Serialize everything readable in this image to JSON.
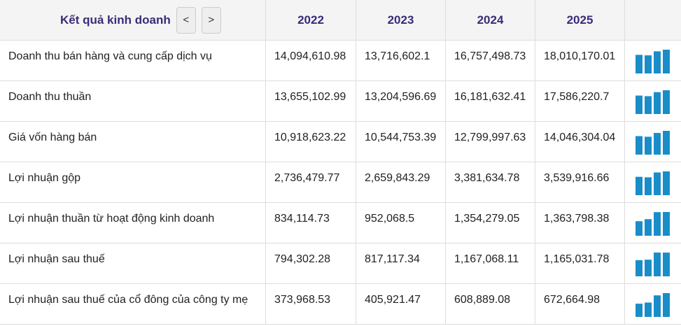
{
  "header": {
    "title": "Kết quả kinh doanh",
    "prev": "<",
    "next": ">",
    "years": [
      "2022",
      "2023",
      "2024",
      "2025"
    ]
  },
  "rows": [
    {
      "label": "Doanh thu bán hàng và cung cấp dịch vụ",
      "values": [
        14094610.98,
        13716602.1,
        16757498.73,
        18010170.01
      ],
      "value_labels": [
        "14,094,610.98",
        "13,716,602.1",
        "16,757,498.73",
        "18,010,170.01"
      ]
    },
    {
      "label": "Doanh thu thuần",
      "values": [
        13655102.99,
        13204596.69,
        16181632.41,
        17586220.7
      ],
      "value_labels": [
        "13,655,102.99",
        "13,204,596.69",
        "16,181,632.41",
        "17,586,220.7"
      ]
    },
    {
      "label": "Giá vốn hàng bán",
      "values": [
        10918623.22,
        10544753.39,
        12799997.63,
        14046304.04
      ],
      "value_labels": [
        "10,918,623.22",
        "10,544,753.39",
        "12,799,997.63",
        "14,046,304.04"
      ]
    },
    {
      "label": "Lợi nhuận gộp",
      "values": [
        2736479.77,
        2659843.29,
        3381634.78,
        3539916.66
      ],
      "value_labels": [
        "2,736,479.77",
        "2,659,843.29",
        "3,381,634.78",
        "3,539,916.66"
      ]
    },
    {
      "label": "Lợi nhuận thuần từ hoạt động kinh doanh",
      "values": [
        834114.73,
        952068.5,
        1354279.05,
        1363798.38
      ],
      "value_labels": [
        "834,114.73",
        "952,068.5",
        "1,354,279.05",
        "1,363,798.38"
      ]
    },
    {
      "label": "Lợi nhuận sau thuế",
      "values": [
        794302.28,
        817117.34,
        1167068.11,
        1165031.78
      ],
      "value_labels": [
        "794,302.28",
        "817,117.34",
        "1,167,068.11",
        "1,165,031.78"
      ]
    },
    {
      "label": "Lợi nhuận sau thuế của cổ đông của công ty mẹ",
      "values": [
        373968.53,
        405921.47,
        608889.08,
        672664.98
      ],
      "value_labels": [
        "373,968.53",
        "405,921.47",
        "608,889.08",
        "672,664.98"
      ]
    }
  ],
  "bar_color": "#1a8dc8"
}
